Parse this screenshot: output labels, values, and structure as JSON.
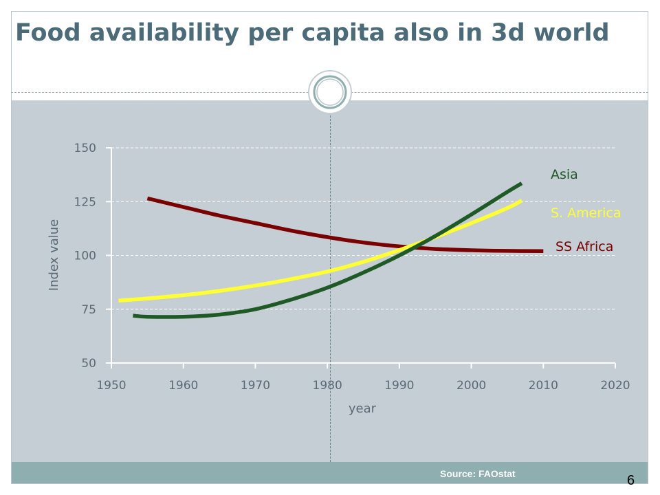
{
  "slide": {
    "title": "Food availability per capita also in 3d world",
    "source": "Source: FAOstat",
    "page_number": "6"
  },
  "colors": {
    "title": "#4b6b78",
    "panel": "#c5ced4",
    "footer_band": "#8eaeb0",
    "axis_text": "#5a6a72"
  },
  "chart_data": {
    "type": "line",
    "xlabel": "year",
    "ylabel": "Index value",
    "xlim": [
      1950,
      2020
    ],
    "ylim": [
      50,
      150
    ],
    "xticks": [
      "1950",
      "1960",
      "1970",
      "1980",
      "1990",
      "2000",
      "2010",
      "2020"
    ],
    "yticks": [
      "50",
      "75",
      "100",
      "125",
      "150"
    ],
    "grid": "horizontal-dashed",
    "series": [
      {
        "name": "Asia",
        "color": "#1f5a26",
        "x": [
          1953,
          1955,
          1960,
          1965,
          1970,
          1975,
          1980,
          1985,
          1990,
          1995,
          2000,
          2005,
          2007
        ],
        "y": [
          72,
          71.5,
          71.5,
          72.5,
          75,
          79.5,
          85,
          92,
          100,
          109,
          119,
          129.5,
          133.5
        ]
      },
      {
        "name": "S. America",
        "color": "#ffff33",
        "x": [
          1951,
          1955,
          1960,
          1965,
          1970,
          1975,
          1980,
          1985,
          1990,
          1995,
          2000,
          2005,
          2007
        ],
        "y": [
          79,
          80,
          81.5,
          83.5,
          86,
          89,
          92.5,
          97,
          102.5,
          108.5,
          115,
          122,
          125.5
        ]
      },
      {
        "name": "SS Africa",
        "color": "#7a0000",
        "x": [
          1955,
          1960,
          1965,
          1970,
          1975,
          1980,
          1985,
          1990,
          1995,
          2000,
          2005,
          2010
        ],
        "y": [
          126.5,
          122.5,
          118.5,
          115,
          111.5,
          108.5,
          106,
          104.2,
          103,
          102.4,
          102.1,
          102
        ]
      }
    ]
  }
}
